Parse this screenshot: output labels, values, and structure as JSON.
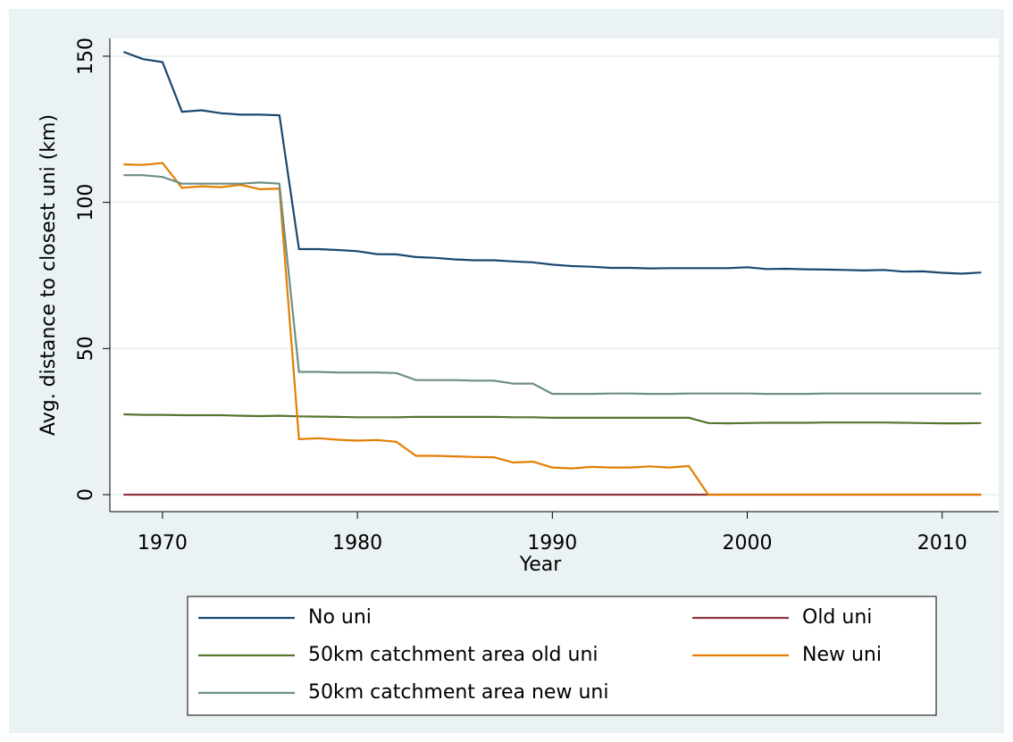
{
  "chart_data": {
    "type": "line",
    "x_label": "Year",
    "y_label": "Avg. distance to closest uni (km)",
    "x": [
      1968,
      1969,
      1970,
      1971,
      1972,
      1973,
      1974,
      1975,
      1976,
      1977,
      1978,
      1979,
      1980,
      1981,
      1982,
      1983,
      1984,
      1985,
      1986,
      1987,
      1988,
      1989,
      1990,
      1991,
      1992,
      1993,
      1994,
      1995,
      1996,
      1997,
      1998,
      1999,
      2000,
      2001,
      2002,
      2003,
      2004,
      2005,
      2006,
      2007,
      2008,
      2009,
      2010,
      2011,
      2012
    ],
    "series": [
      {
        "name": "No uni",
        "color": "#1a476f",
        "values": [
          151.5,
          149,
          148,
          131,
          131.5,
          130.5,
          130,
          130,
          129.8,
          84,
          84,
          83.7,
          83.3,
          82.3,
          82.2,
          81.3,
          81,
          80.5,
          80.2,
          80.2,
          79.8,
          79.5,
          78.7,
          78.2,
          78,
          77.6,
          77.6,
          77.4,
          77.5,
          77.5,
          77.5,
          77.5,
          77.8,
          77.2,
          77.3,
          77.1,
          77,
          76.9,
          76.7,
          76.9,
          76.3,
          76.4,
          75.9,
          75.6,
          76
        ]
      },
      {
        "name": "Old uni",
        "color": "#90353b",
        "values": [
          0,
          0,
          0,
          0,
          0,
          0,
          0,
          0,
          0,
          0,
          0,
          0,
          0,
          0,
          0,
          0,
          0,
          0,
          0,
          0,
          0,
          0,
          0,
          0,
          0,
          0,
          0,
          0,
          0,
          0,
          0,
          0,
          0,
          0,
          0,
          0,
          0,
          0,
          0,
          0,
          0,
          0,
          0,
          0,
          0
        ]
      },
      {
        "name": "50km catchment area old uni",
        "color": "#55752f",
        "values": [
          27.5,
          27.3,
          27.3,
          27.2,
          27.2,
          27.2,
          27,
          26.9,
          27,
          26.8,
          26.7,
          26.6,
          26.5,
          26.5,
          26.5,
          26.6,
          26.6,
          26.6,
          26.6,
          26.6,
          26.5,
          26.5,
          26.3,
          26.3,
          26.3,
          26.3,
          26.3,
          26.3,
          26.3,
          26.3,
          24.5,
          24.4,
          24.5,
          24.6,
          24.6,
          24.6,
          24.7,
          24.7,
          24.7,
          24.7,
          24.6,
          24.5,
          24.4,
          24.4,
          24.5
        ]
      },
      {
        "name": "New uni",
        "color": "#e37e00",
        "values": [
          113,
          112.8,
          113.5,
          105,
          105.5,
          105.2,
          106,
          104.5,
          104.7,
          19,
          19.3,
          18.8,
          18.5,
          18.7,
          18.1,
          13.3,
          13.3,
          13.1,
          12.9,
          12.8,
          11,
          11.3,
          9.3,
          9,
          9.5,
          9.3,
          9.3,
          9.7,
          9.3,
          9.8,
          0,
          0,
          0,
          0,
          0,
          0,
          0,
          0,
          0,
          0,
          0,
          0,
          0,
          0,
          0
        ]
      },
      {
        "name": "50km catchment area new uni",
        "color": "#6e8e84",
        "values": [
          109.3,
          109.3,
          108.7,
          106.4,
          106.4,
          106.4,
          106.4,
          106.8,
          106.4,
          42,
          42,
          41.8,
          41.8,
          41.8,
          41.6,
          39.2,
          39.2,
          39.2,
          39,
          39,
          38,
          38,
          34.5,
          34.5,
          34.5,
          34.6,
          34.6,
          34.5,
          34.5,
          34.6,
          34.6,
          34.6,
          34.6,
          34.5,
          34.5,
          34.5,
          34.6,
          34.6,
          34.6,
          34.6,
          34.6,
          34.6,
          34.6,
          34.6,
          34.6
        ]
      }
    ],
    "xlim": [
      1967.3,
      2012.9
    ],
    "xticks": [
      1970,
      1980,
      1990,
      2000,
      2010
    ],
    "ylim": [
      -5.8,
      156.1
    ],
    "yticks": [
      0,
      50,
      100,
      150
    ],
    "grid": true,
    "legend": "bottom"
  }
}
